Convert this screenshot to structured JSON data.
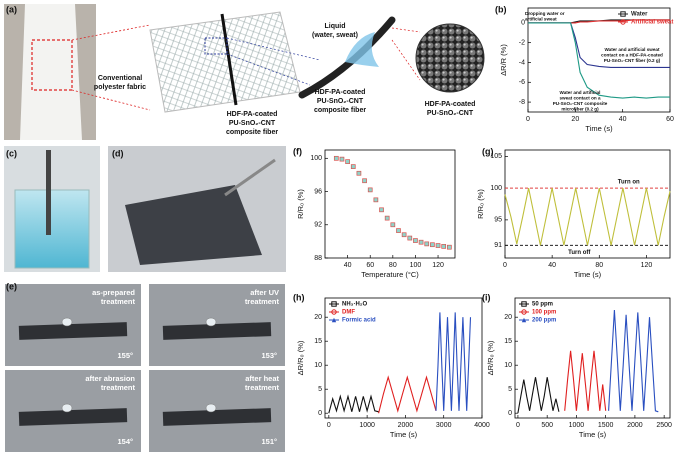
{
  "panel_labels": [
    "(a)",
    "(b)",
    "(c)",
    "(d)",
    "(e)",
    "(f)",
    "(g)",
    "(h)",
    "(i)"
  ],
  "schematic": {
    "fabric_label": [
      "Conventional",
      "polyester fabric"
    ],
    "fiber_label_mesh": [
      "HDF-PA-coated",
      "PU-SnO₂-CNT",
      "composite fiber"
    ],
    "fiber_label_single": [
      "HDF-PA-coated",
      "PU-SnO₂-CNT",
      "composite fiber"
    ],
    "liquid_label": [
      "Liquid",
      "(water, sweat)"
    ],
    "surface_label": [
      "HDF-PA-coated",
      "PU-SnO₂-CNT"
    ]
  },
  "photos_e": [
    {
      "treatment": [
        "as-prepared",
        "treatment"
      ],
      "angle": "155°"
    },
    {
      "treatment": [
        "after UV",
        "treatment"
      ],
      "angle": "153°"
    },
    {
      "treatment": [
        "after abrasion",
        "treatment"
      ],
      "angle": "154°"
    },
    {
      "treatment": [
        "after heat",
        "treatment"
      ],
      "angle": "151°"
    }
  ],
  "chart_data": [
    {
      "type": "line",
      "xlabel": "Time (s)",
      "ylabel": "ΔR/R (%)",
      "xlim": [
        0,
        60
      ],
      "xticks": [
        0,
        20,
        40,
        60
      ],
      "ylim": [
        -9,
        1.5
      ],
      "yticks": [
        0,
        -2,
        -4,
        -6,
        -8
      ],
      "legend": "upper right",
      "x": [
        0,
        5,
        10,
        15,
        18,
        20,
        22,
        25,
        30,
        35,
        40,
        45,
        50,
        55,
        60
      ],
      "series": [
        {
          "name": "Water",
          "color": "#222222",
          "marker": "square",
          "values": [
            0,
            0,
            0,
            0,
            0,
            0.1,
            0.2,
            0.2,
            0.2,
            0.3,
            0.3,
            0.3,
            0.3,
            0.3,
            0.3
          ]
        },
        {
          "name": "Artificial sweat",
          "color": "#e03030",
          "marker": "circle",
          "values": [
            0,
            0,
            0,
            0,
            0,
            0,
            0.1,
            0.1,
            0.2,
            0.2,
            0.2,
            0.3,
            0.3,
            0.3,
            0.3
          ]
        },
        {
          "color": "#2c3590",
          "values": [
            0,
            0,
            0,
            0,
            0,
            -1.5,
            -3.5,
            -4.2,
            -4.4,
            -4.5,
            -4.5,
            -4.5,
            -4.5,
            -4.5,
            -4.5
          ]
        },
        {
          "color": "#1f9a86",
          "values": [
            0,
            0,
            0,
            0,
            0,
            -2,
            -5,
            -6.5,
            -7.3,
            -7.5,
            -7.6,
            -7.5,
            -7.6,
            -7.5,
            -7.5
          ]
        }
      ],
      "annotations": [
        [
          "Dropping water or",
          "artificial sweat"
        ],
        [
          "Water and artificial sweat",
          "contact on a HDF-PA-coated",
          "PU-SnO₂-CNT fiber (0.2 g)"
        ],
        [
          "Water and artificial",
          "sweat contact on a",
          "PU-SnO₂-CNT composite",
          "microfiber (0.2 g)"
        ]
      ]
    },
    {
      "type": "scatter",
      "xlabel": "Temperature (°C)",
      "ylabel": "R/R₀ (%)",
      "xlim": [
        20,
        135
      ],
      "xticks": [
        40,
        60,
        80,
        100,
        120
      ],
      "ylim": [
        88,
        101
      ],
      "yticks": [
        88,
        92,
        96,
        100
      ],
      "x": [
        30,
        35,
        40,
        45,
        50,
        55,
        60,
        65,
        70,
        75,
        80,
        85,
        90,
        95,
        100,
        105,
        110,
        115,
        120,
        125,
        130
      ],
      "series": [
        {
          "color": "#d9534f",
          "fill": "#8fd3c9",
          "values": [
            100,
            99.9,
            99.6,
            99.0,
            98.2,
            97.3,
            96.2,
            95.0,
            93.8,
            92.8,
            92.0,
            91.3,
            90.8,
            90.4,
            90.1,
            89.9,
            89.7,
            89.6,
            89.5,
            89.4,
            89.3
          ]
        }
      ]
    },
    {
      "type": "line",
      "xlabel": "Time (s)",
      "ylabel": "R/R₀ (%)",
      "xlim": [
        0,
        140
      ],
      "xticks": [
        0,
        40,
        80,
        120
      ],
      "ylim": [
        89,
        106
      ],
      "yticks": [
        91,
        95,
        100,
        105
      ],
      "x": [
        0,
        5,
        10,
        15,
        20,
        25,
        30,
        35,
        40,
        45,
        50,
        55,
        60,
        65,
        70,
        75,
        80,
        85,
        90,
        95,
        100,
        105,
        110,
        115,
        120,
        125,
        130,
        135,
        140
      ],
      "series": [
        {
          "color": "#bfbf3a",
          "values": [
            99,
            95.5,
            91.2,
            95.5,
            100,
            95.5,
            91,
            95.5,
            100,
            95.5,
            91,
            95.5,
            100,
            95.5,
            91,
            95.5,
            100,
            95.5,
            91,
            95.5,
            100,
            95.5,
            91,
            95.5,
            100,
            95.5,
            91,
            95.5,
            99.5
          ]
        }
      ],
      "hlines": [
        {
          "value": 100,
          "label": "Turn on",
          "color": "#e04040"
        },
        {
          "value": 91,
          "label": "Turn off",
          "color": "#000000"
        }
      ]
    },
    {
      "type": "line",
      "xlabel": "Time (s)",
      "ylabel": "ΔR/R₀ (%)",
      "xlim": [
        -100,
        4000
      ],
      "xticks": [
        0,
        1000,
        2000,
        3000,
        4000
      ],
      "ylim": [
        -1,
        24
      ],
      "yticks": [
        0,
        5,
        10,
        15,
        20
      ],
      "legend": "upper left",
      "series": [
        {
          "name": "NH₃·H₂O",
          "color": "#111111",
          "marker": "square",
          "x": [
            0,
            100,
            200,
            300,
            400,
            500,
            600,
            700,
            800,
            900,
            1000,
            1100,
            1200,
            1300
          ],
          "values": [
            0,
            3,
            0.5,
            3.5,
            0.5,
            3.5,
            0.3,
            3.5,
            0.3,
            3.5,
            0.5,
            3.5,
            0.5,
            0.3
          ]
        },
        {
          "name": "DMF",
          "color": "#e02020",
          "marker": "circle",
          "x": [
            1300,
            1425,
            1550,
            1675,
            1800,
            1925,
            2050,
            2175,
            2300,
            2425,
            2550,
            2675,
            2800
          ],
          "values": [
            0,
            4,
            7.5,
            4,
            0.5,
            4,
            7.5,
            4,
            0.5,
            4,
            7.5,
            4,
            0.5
          ]
        },
        {
          "name": "Formic acid",
          "color": "#2a4fc0",
          "marker": "triangle",
          "x": [
            2800,
            2850,
            2900,
            2950,
            3000,
            3050,
            3100,
            3150,
            3200,
            3250,
            3300,
            3350,
            3400,
            3450,
            3500,
            3550,
            3600,
            3650,
            3700
          ],
          "values": [
            0.5,
            10,
            21,
            10,
            0.5,
            10,
            20,
            10,
            0.5,
            10,
            21,
            10,
            0.5,
            10,
            20,
            10,
            0.5,
            10,
            20
          ]
        }
      ]
    },
    {
      "type": "line",
      "xlabel": "Time (s)",
      "ylabel": "ΔR/R₀ (%)",
      "xlim": [
        -50,
        2600
      ],
      "xticks": [
        0,
        500,
        1000,
        1500,
        2000,
        2500
      ],
      "ylim": [
        -1,
        24
      ],
      "yticks": [
        0,
        5,
        10,
        15,
        20
      ],
      "legend": "upper left",
      "series": [
        {
          "name": "50 ppm",
          "color": "#111111",
          "marker": "square",
          "x": [
            0,
            50,
            100,
            150,
            200,
            250,
            300,
            350,
            400,
            450,
            500,
            550,
            600,
            650,
            700
          ],
          "values": [
            0,
            3.5,
            7,
            3.5,
            0.5,
            4,
            7.5,
            4,
            0.5,
            3.5,
            7.5,
            4,
            0.5,
            3,
            0.3
          ]
        },
        {
          "name": "100 ppm",
          "color": "#e02020",
          "marker": "circle",
          "x": [
            800,
            850,
            900,
            950,
            1000,
            1050,
            1100,
            1150,
            1200,
            1250,
            1300,
            1350,
            1400,
            1450,
            1500
          ],
          "values": [
            0.5,
            7,
            13,
            7,
            0.5,
            6.5,
            12.5,
            6.5,
            0.5,
            7,
            13,
            7,
            0.5,
            6,
            0.5
          ]
        },
        {
          "name": "200 ppm",
          "color": "#2a4fc0",
          "marker": "triangle",
          "x": [
            1550,
            1600,
            1650,
            1700,
            1750,
            1800,
            1850,
            1900,
            1950,
            2000,
            2050,
            2100,
            2150,
            2200,
            2250,
            2300,
            2350,
            2400
          ],
          "values": [
            0.5,
            11,
            21.5,
            11,
            0.5,
            10,
            20.5,
            10,
            0.5,
            11,
            21,
            11,
            0.5,
            10,
            20,
            10,
            0.5,
            0.3
          ]
        }
      ]
    }
  ]
}
